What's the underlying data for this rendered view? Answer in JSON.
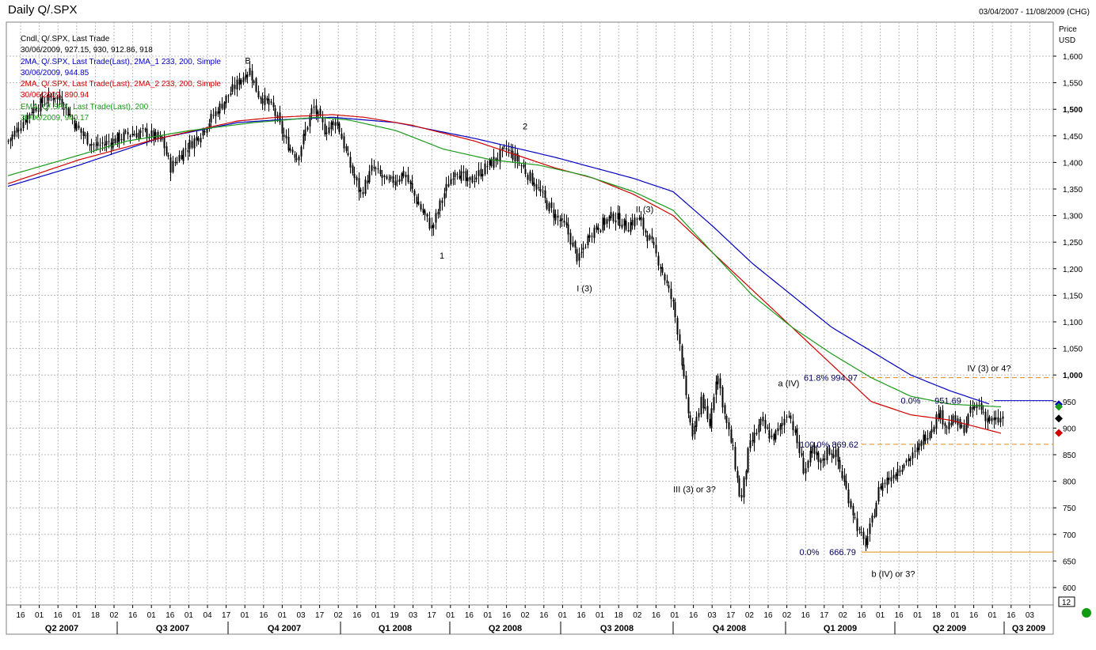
{
  "header": {
    "title": "Daily Q/.SPX",
    "date_range": "03/04/2007 - 11/08/2009 (CHG)"
  },
  "legend": [
    {
      "text": "Cndl, Q/.SPX, Last Trade",
      "color": "#000000"
    },
    {
      "text": "30/06/2009, 927.15, 930, 912.86, 918",
      "color": "#000000"
    },
    {
      "text": "2MA, Q/.SPX, Last Trade(Last), 2MA_1 233, 200, Simple",
      "color": "#0000c0"
    },
    {
      "text": "30/06/2009, 944.85",
      "color": "#0000c0"
    },
    {
      "text": "2MA, Q/.SPX, Last Trade(Last), 2MA_2 233, 200, Simple",
      "color": "#d00000"
    },
    {
      "text": "30/06/2009, 890.94",
      "color": "#d00000"
    },
    {
      "text": "EMA, Q/.SPX, Last Trade(Last), 200",
      "color": "#1a9a1a"
    },
    {
      "text": "30/06/2009, 940.17",
      "color": "#1a9a1a"
    }
  ],
  "axis": {
    "price_label": "Price",
    "currency_label": "USD",
    "y_ticks": [
      "600",
      "650",
      "700",
      "750",
      "800",
      "850",
      "900",
      "950",
      "1,000",
      "1,050",
      "1,100",
      "1,150",
      "1,200",
      "1,250",
      "1,300",
      "1,350",
      "1,400",
      "1,450",
      "1,500",
      "1,550",
      "1,600"
    ],
    "bold_ticks": [
      "1,000",
      "1,500"
    ],
    "x_day_labels": [
      "16",
      "01",
      "16",
      "01",
      "18",
      "02",
      "16",
      "01",
      "16",
      "01",
      "04",
      "17",
      "01",
      "16",
      "01",
      "03",
      "17",
      "02",
      "16",
      "01",
      "19",
      "03",
      "17",
      "01",
      "16",
      "01",
      "16",
      "02",
      "16",
      "01",
      "16",
      "01",
      "18",
      "02",
      "16",
      "01",
      "16",
      "03",
      "17",
      "02",
      "16",
      "02",
      "16",
      "17",
      "02",
      "16",
      "01",
      "16",
      "01",
      "18",
      "01",
      "16",
      "01",
      "16",
      "03"
    ],
    "quarters": [
      "Q2 2007",
      "Q3 2007",
      "Q4 2007",
      "Q1 2008",
      "Q2 2008",
      "Q3 2008",
      "Q4 2008",
      "Q1 2009",
      "Q2 2009",
      "Q3 2009"
    ],
    "page_badge": "12"
  },
  "chart_data": {
    "type": "candlestick",
    "title": "Daily Q/.SPX",
    "ylabel": "Price USD",
    "ylim": [
      600,
      1640
    ],
    "grid": true,
    "legend_position": "top-left",
    "series": [
      {
        "name": "Cndl, Q/.SPX, Last Trade",
        "color": "#000000",
        "last": {
          "date": "30/06/2009",
          "open": 927.15,
          "high": 930,
          "low": 912.86,
          "close": 918
        },
        "keypoints": [
          [
            0,
            1425
          ],
          [
            10,
            1440
          ],
          [
            25,
            1470
          ],
          [
            40,
            1500
          ],
          [
            55,
            1515
          ],
          [
            70,
            1525
          ],
          [
            80,
            1510
          ],
          [
            95,
            1470
          ],
          [
            105,
            1450
          ],
          [
            120,
            1430
          ],
          [
            140,
            1440
          ],
          [
            165,
            1455
          ],
          [
            185,
            1455
          ],
          [
            205,
            1440
          ],
          [
            215,
            1390
          ],
          [
            230,
            1420
          ],
          [
            250,
            1450
          ],
          [
            270,
            1490
          ],
          [
            290,
            1530
          ],
          [
            305,
            1560
          ],
          [
            315,
            1575
          ],
          [
            325,
            1530
          ],
          [
            345,
            1500
          ],
          [
            360,
            1440
          ],
          [
            375,
            1410
          ],
          [
            395,
            1505
          ],
          [
            410,
            1460
          ],
          [
            425,
            1480
          ],
          [
            440,
            1400
          ],
          [
            455,
            1340
          ],
          [
            470,
            1390
          ],
          [
            490,
            1360
          ],
          [
            510,
            1380
          ],
          [
            525,
            1330
          ],
          [
            545,
            1275
          ],
          [
            560,
            1340
          ],
          [
            575,
            1390
          ],
          [
            590,
            1360
          ],
          [
            605,
            1380
          ],
          [
            620,
            1400
          ],
          [
            640,
            1425
          ],
          [
            655,
            1400
          ],
          [
            675,
            1360
          ],
          [
            695,
            1310
          ],
          [
            715,
            1275
          ],
          [
            730,
            1215
          ],
          [
            745,
            1270
          ],
          [
            760,
            1285
          ],
          [
            775,
            1300
          ],
          [
            790,
            1280
          ],
          [
            805,
            1295
          ],
          [
            820,
            1255
          ],
          [
            835,
            1200
          ],
          [
            850,
            1130
          ],
          [
            858,
            1060
          ],
          [
            866,
            950
          ],
          [
            875,
            880
          ],
          [
            885,
            960
          ],
          [
            895,
            900
          ],
          [
            905,
            1010
          ],
          [
            915,
            920
          ],
          [
            925,
            860
          ],
          [
            935,
            760
          ],
          [
            945,
            860
          ],
          [
            960,
            910
          ],
          [
            975,
            880
          ],
          [
            985,
            900
          ],
          [
            995,
            935
          ],
          [
            1005,
            880
          ],
          [
            1015,
            820
          ],
          [
            1025,
            855
          ],
          [
            1035,
            830
          ],
          [
            1045,
            860
          ],
          [
            1055,
            850
          ],
          [
            1065,
            800
          ],
          [
            1075,
            750
          ],
          [
            1085,
            700
          ],
          [
            1092,
            680
          ],
          [
            1100,
            720
          ],
          [
            1110,
            790
          ],
          [
            1125,
            810
          ],
          [
            1140,
            835
          ],
          [
            1155,
            850
          ],
          [
            1165,
            880
          ],
          [
            1175,
            900
          ],
          [
            1185,
            930
          ],
          [
            1195,
            905
          ],
          [
            1205,
            915
          ],
          [
            1215,
            895
          ],
          [
            1225,
            930
          ],
          [
            1235,
            945
          ],
          [
            1245,
            920
          ],
          [
            1255,
            910
          ],
          [
            1265,
            918
          ]
        ]
      },
      {
        "name": "2MA_1 233",
        "color": "#0000c0",
        "last": 944.85,
        "keypoints": [
          [
            10,
            1355
          ],
          [
            100,
            1395
          ],
          [
            200,
            1445
          ],
          [
            300,
            1475
          ],
          [
            350,
            1480
          ],
          [
            420,
            1485
          ],
          [
            500,
            1475
          ],
          [
            600,
            1445
          ],
          [
            700,
            1410
          ],
          [
            800,
            1370
          ],
          [
            850,
            1345
          ],
          [
            900,
            1280
          ],
          [
            950,
            1210
          ],
          [
            1000,
            1150
          ],
          [
            1050,
            1090
          ],
          [
            1100,
            1045
          ],
          [
            1150,
            1000
          ],
          [
            1200,
            970
          ],
          [
            1250,
            945
          ]
        ]
      },
      {
        "name": "2MA_2 233",
        "color": "#d00000",
        "last": 890.94,
        "keypoints": [
          [
            10,
            1360
          ],
          [
            100,
            1405
          ],
          [
            200,
            1445
          ],
          [
            300,
            1478
          ],
          [
            350,
            1485
          ],
          [
            420,
            1490
          ],
          [
            460,
            1485
          ],
          [
            520,
            1470
          ],
          [
            600,
            1440
          ],
          [
            700,
            1390
          ],
          [
            750,
            1370
          ],
          [
            800,
            1340
          ],
          [
            850,
            1300
          ],
          [
            900,
            1230
          ],
          [
            950,
            1160
          ],
          [
            1000,
            1090
          ],
          [
            1050,
            1020
          ],
          [
            1100,
            950
          ],
          [
            1150,
            925
          ],
          [
            1200,
            915
          ],
          [
            1265,
            890
          ]
        ]
      },
      {
        "name": "EMA 200",
        "color": "#1a9a1a",
        "last": 940.17,
        "keypoints": [
          [
            10,
            1375
          ],
          [
            80,
            1405
          ],
          [
            160,
            1440
          ],
          [
            240,
            1460
          ],
          [
            320,
            1475
          ],
          [
            400,
            1485
          ],
          [
            440,
            1480
          ],
          [
            500,
            1460
          ],
          [
            560,
            1425
          ],
          [
            620,
            1405
          ],
          [
            680,
            1395
          ],
          [
            740,
            1375
          ],
          [
            800,
            1345
          ],
          [
            850,
            1310
          ],
          [
            900,
            1230
          ],
          [
            950,
            1150
          ],
          [
            1000,
            1090
          ],
          [
            1050,
            1040
          ],
          [
            1100,
            995
          ],
          [
            1150,
            960
          ],
          [
            1200,
            945
          ],
          [
            1265,
            940
          ]
        ]
      }
    ],
    "annotations": [
      {
        "text": "B",
        "x": 313,
        "y": 1592
      },
      {
        "text": "2",
        "x": 663,
        "y": 1468
      },
      {
        "text": "1",
        "x": 558,
        "y": 1225
      },
      {
        "text": "II (3)",
        "x": 814,
        "y": 1312
      },
      {
        "text": "I (3)",
        "x": 738,
        "y": 1163
      },
      {
        "text": "III (3)  or 3?",
        "x": 877,
        "y": 785
      },
      {
        "text": "a (IV)",
        "x": 996,
        "y": 985
      },
      {
        "text": "IV (3) or 4?",
        "x": 1249,
        "y": 1013
      },
      {
        "text": "b (IV) or 3?",
        "x": 1128,
        "y": 626
      },
      {
        "text": "61.8%  994.97",
        "x": 1049,
        "y": 994.97
      },
      {
        "text": "0.0%",
        "x": 1150,
        "y": 951.69
      },
      {
        "text": "951.69",
        "x": 1197,
        "y": 951.69
      },
      {
        "text": "100.0%  869.62",
        "x": 1047,
        "y": 869.62
      },
      {
        "text": "0.0%",
        "x": 1022,
        "y": 666.79
      },
      {
        "text": "666.79",
        "x": 1064,
        "y": 666.79
      }
    ],
    "levels": [
      {
        "value": 994.97,
        "color": "#e08a1a",
        "style": "dashed"
      },
      {
        "value": 951.69,
        "color": "#0000c0",
        "style": "solid"
      },
      {
        "value": 869.62,
        "color": "#e08a1a",
        "style": "dashed"
      },
      {
        "value": 666.79,
        "color": "#e08a1a",
        "style": "solid"
      }
    ],
    "markers": [
      {
        "value": 944.85,
        "color": "#0000c0"
      },
      {
        "value": 940.17,
        "color": "#1a9a1a"
      },
      {
        "value": 918,
        "color": "#000000"
      },
      {
        "value": 890.94,
        "color": "#d00000"
      }
    ]
  }
}
